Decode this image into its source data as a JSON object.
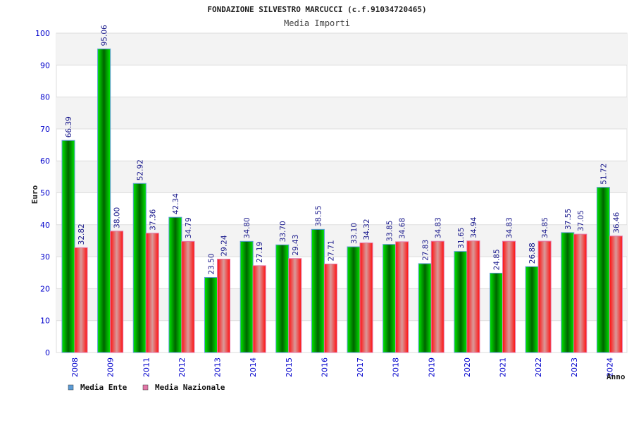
{
  "chart_data": {
    "type": "bar",
    "title": "FONDAZIONE SILVESTRO MARCUCCI (c.f.91034720465)",
    "subtitle": "Media Importi",
    "xlabel": "Anno",
    "ylabel": "Euro",
    "ylim": [
      0,
      100
    ],
    "yticks": [
      0,
      10,
      20,
      30,
      40,
      50,
      60,
      70,
      80,
      90,
      100
    ],
    "grid": true,
    "legend_position": "bottom-left",
    "categories": [
      "2008",
      "2009",
      "2011",
      "2012",
      "2013",
      "2014",
      "2015",
      "2016",
      "2017",
      "2018",
      "2019",
      "2020",
      "2021",
      "2022",
      "2023",
      "2024"
    ],
    "series": [
      {
        "name": "Media Ente",
        "color": "#00cc00",
        "legend_color": "#5b9bd5",
        "border": "#5b9bd5",
        "values": [
          66.39,
          95.06,
          52.92,
          42.34,
          23.5,
          34.8,
          33.7,
          38.55,
          33.1,
          33.85,
          27.83,
          31.65,
          24.85,
          26.88,
          37.55,
          51.72
        ],
        "labels": [
          "66.39",
          "95.06",
          "52.92",
          "42.34",
          "23.50",
          "34.80",
          "33.70",
          "38.55",
          "33.10",
          "33.85",
          "27.83",
          "31.65",
          "24.85",
          "26.88",
          "37.55",
          "51.72"
        ]
      },
      {
        "name": "Media Nazionale",
        "color": "#ff1a1a",
        "legend_color": "#e377a8",
        "border": "#e377a8",
        "values": [
          32.82,
          38.0,
          37.36,
          34.79,
          29.24,
          27.19,
          29.43,
          27.71,
          34.32,
          34.68,
          34.83,
          34.94,
          34.83,
          34.85,
          37.05,
          36.46
        ],
        "labels": [
          "32.82",
          "38.00",
          "37.36",
          "34.79",
          "29.24",
          "27.19",
          "29.43",
          "27.71",
          "34.32",
          "34.68",
          "34.83",
          "34.94",
          "34.83",
          "34.85",
          "37.05",
          "36.46"
        ]
      }
    ]
  }
}
